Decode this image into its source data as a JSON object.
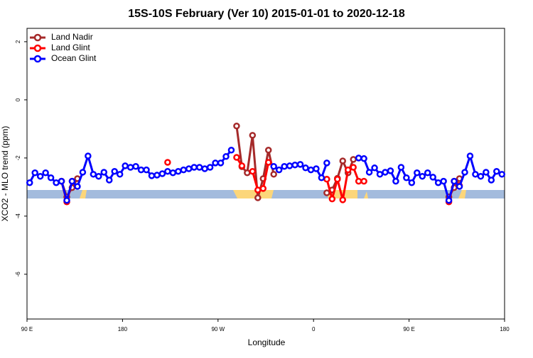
{
  "chart_data": {
    "type": "line",
    "title": "15S-10S February (Ver 10)   2015-01-01 to 2020-12-18",
    "x_label": "Longitude",
    "y_label": "XCO2 - MLO trend (ppm)",
    "x": [
      92.5,
      97.5,
      102.5,
      107.5,
      112.5,
      117.5,
      122.5,
      127.5,
      132.5,
      137.5,
      142.5,
      147.5,
      152.5,
      157.5,
      162.5,
      167.5,
      172.5,
      177.5,
      182.5,
      187.5,
      192.5,
      197.5,
      202.5,
      207.5,
      212.5,
      217.5,
      222.5,
      227.5,
      232.5,
      237.5,
      242.5,
      247.5,
      252.5,
      257.5,
      262.5,
      267.5,
      272.5,
      277.5,
      282.5,
      287.5,
      292.5,
      297.5,
      302.5,
      307.5,
      312.5,
      317.5,
      322.5,
      327.5,
      332.5,
      337.5,
      342.5,
      347.5,
      352.5,
      357.5,
      362.5,
      367.5,
      372.5,
      377.5,
      382.5,
      387.5,
      392.5,
      397.5,
      402.5,
      407.5,
      412.5,
      417.5,
      422.5,
      427.5,
      432.5,
      437.5,
      442.5,
      447.5,
      452.5,
      457.5,
      462.5,
      467.5,
      472.5,
      477.5,
      482.5,
      487.5,
      492.5,
      497.5,
      502.5,
      507.5,
      512.5,
      517.5,
      522.5,
      527.5,
      532.5,
      537.5
    ],
    "series": [
      {
        "name": "Land Nadir",
        "color": "#a52a2a",
        "values": [
          null,
          null,
          null,
          null,
          null,
          null,
          -2.8,
          -3.34,
          -3.02,
          -2.71,
          null,
          null,
          null,
          null,
          null,
          null,
          null,
          null,
          null,
          null,
          null,
          null,
          null,
          null,
          null,
          null,
          null,
          null,
          null,
          null,
          null,
          null,
          null,
          null,
          null,
          null,
          null,
          null,
          null,
          -0.9,
          -2.3,
          -2.51,
          -1.22,
          -3.37,
          -2.71,
          -1.73,
          -2.56,
          null,
          null,
          null,
          null,
          null,
          null,
          null,
          null,
          null,
          -3.2,
          -3.1,
          -2.7,
          -2.1,
          -2.51,
          -2.05,
          null,
          null,
          null,
          null,
          null,
          null,
          null,
          null,
          null,
          null,
          null,
          null,
          null,
          null,
          null,
          null,
          null,
          -3.34,
          -3.02,
          -2.71,
          null,
          null,
          null,
          null,
          null,
          null,
          null,
          null
        ]
      },
      {
        "name": "Land Glint",
        "color": "#ff0000",
        "values": [
          null,
          null,
          null,
          null,
          null,
          null,
          -2.8,
          -3.51,
          -2.8,
          null,
          null,
          null,
          null,
          null,
          null,
          null,
          null,
          null,
          null,
          null,
          null,
          null,
          null,
          null,
          null,
          null,
          -2.15,
          null,
          null,
          null,
          null,
          null,
          null,
          null,
          null,
          null,
          null,
          null,
          null,
          -1.98,
          -2.27,
          null,
          -2.46,
          -3.1,
          -3.05,
          -2.15,
          null,
          null,
          null,
          null,
          null,
          null,
          null,
          null,
          null,
          null,
          -2.73,
          -3.41,
          -2.73,
          -3.44,
          -2.41,
          -2.32,
          -2.8,
          -2.8,
          null,
          null,
          null,
          null,
          null,
          null,
          null,
          null,
          null,
          null,
          null,
          null,
          null,
          null,
          null,
          -3.51,
          -2.8,
          -2.95,
          null,
          null,
          null,
          null,
          null,
          null,
          null,
          null
        ]
      },
      {
        "name": "Ocean Glint",
        "color": "#0000ff",
        "values": [
          -2.85,
          -2.51,
          -2.63,
          -2.51,
          -2.68,
          -2.85,
          -2.8,
          -3.46,
          -2.8,
          -2.98,
          -2.49,
          -1.93,
          -2.56,
          -2.63,
          -2.49,
          -2.76,
          -2.46,
          -2.56,
          -2.27,
          -2.32,
          -2.29,
          -2.41,
          -2.41,
          -2.61,
          -2.59,
          -2.54,
          -2.46,
          -2.51,
          -2.46,
          -2.41,
          -2.37,
          -2.32,
          -2.32,
          -2.37,
          -2.32,
          -2.17,
          -2.17,
          -1.95,
          -1.73,
          null,
          null,
          null,
          null,
          null,
          null,
          null,
          -2.29,
          -2.41,
          -2.29,
          -2.27,
          -2.24,
          -2.22,
          -2.34,
          -2.41,
          -2.37,
          -2.68,
          -2.17,
          null,
          null,
          null,
          null,
          null,
          -2.0,
          -2.02,
          -2.49,
          -2.34,
          -2.56,
          -2.49,
          -2.44,
          -2.8,
          -2.32,
          -2.68,
          -2.85,
          -2.51,
          -2.63,
          -2.51,
          -2.66,
          -2.85,
          -2.8,
          -3.46,
          -2.8,
          -2.98,
          -2.49,
          -1.93,
          -2.56,
          -2.63,
          -2.49,
          -2.76,
          -2.46,
          -2.56
        ]
      }
    ],
    "xlim": [
      90,
      540
    ],
    "xticks": [
      {
        "value": 90,
        "label": "90 E"
      },
      {
        "value": 180,
        "label": "180"
      },
      {
        "value": 270,
        "label": "90 W"
      },
      {
        "value": 360,
        "label": "0"
      },
      {
        "value": 450,
        "label": "90 E"
      },
      {
        "value": 540,
        "label": "180"
      }
    ],
    "ylim": [
      -7.54,
      2.46
    ],
    "yticks": [
      -6,
      -4,
      -2,
      0,
      2
    ],
    "legend": "top-left"
  }
}
